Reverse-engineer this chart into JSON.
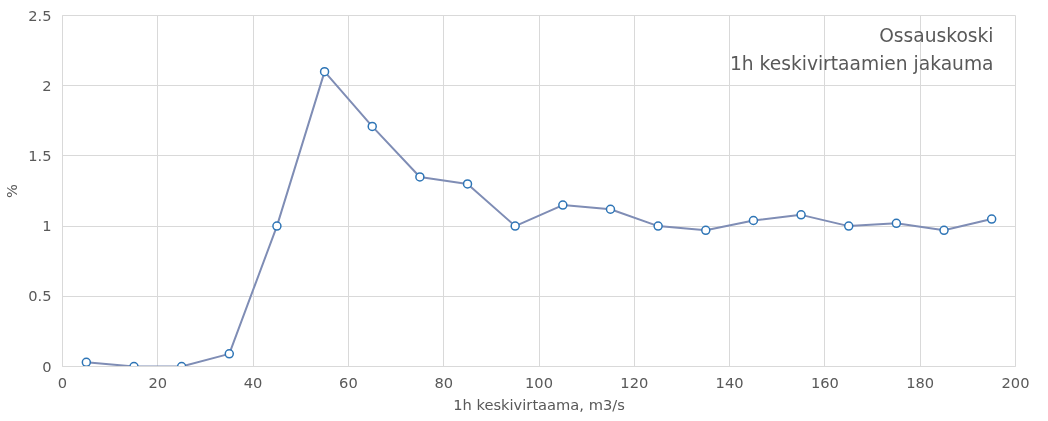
{
  "chart_data": {
    "type": "line",
    "title": "Ossauskoski",
    "subtitle": "1h keskivirtaamien jakauma",
    "xlabel": "1h keskivirtaama, m3/s",
    "ylabel": "%",
    "x": [
      5,
      15,
      25,
      35,
      45,
      55,
      65,
      75,
      85,
      95,
      105,
      115,
      125,
      135,
      145,
      155,
      165,
      175,
      185,
      195
    ],
    "series": [
      {
        "color": "#7f8db5",
        "values": [
          0.03,
          0,
          0,
          0.09,
          1.0,
          2.1,
          1.71,
          1.35,
          1.3,
          1.0,
          1.15,
          1.12,
          1.0,
          0.97,
          1.04,
          1.08,
          1.0,
          1.02,
          0.97,
          1.05
        ]
      }
    ],
    "xlim": [
      0,
      200
    ],
    "ylim": [
      0,
      2.5
    ],
    "xticks": [
      0,
      20,
      40,
      60,
      80,
      100,
      120,
      140,
      160,
      180,
      200
    ],
    "yticks": [
      0,
      0.5,
      1,
      1.5,
      2,
      2.5
    ],
    "grid": true,
    "marker": "circle",
    "line_style": "solid"
  }
}
